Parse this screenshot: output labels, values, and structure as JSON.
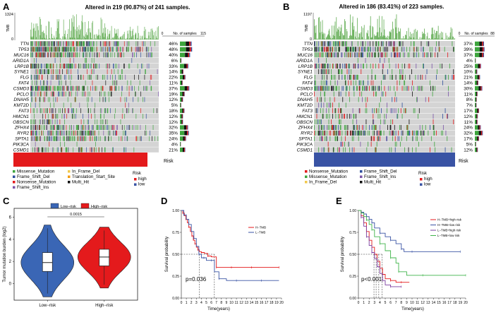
{
  "colors": {
    "missense": "#3da53d",
    "frame_shift_del": "#2f4f9e",
    "nonsense": "#e31a1c",
    "frame_shift_ins": "#7b55a8",
    "in_frame_del": "#f2c94c",
    "translation_start_site": "#f39c12",
    "multi_hit": "#111111",
    "high": "#e31a1c",
    "low": "#3953a4",
    "gray": "#d4d4d4",
    "tmb_bar": "#5aa84a"
  },
  "panels": [
    {
      "letter": "A",
      "title": "Altered in 219 (90.87%) of 241 samples.",
      "tmb_label": "TMB",
      "tmb_max": "1324",
      "tmb_min": "0",
      "axis_min": "0",
      "axis_max": "115",
      "axis_label": "No. of samples",
      "risk_label": "Risk",
      "risk_group": "high",
      "genes": [
        {
          "name": "TTN",
          "pct": "46%",
          "value": 46
        },
        {
          "name": "TP53",
          "pct": "48%",
          "value": 48
        },
        {
          "name": "MUC16",
          "pct": "40%",
          "value": 40
        },
        {
          "name": "ARID1A",
          "pct": "6%",
          "value": 6
        },
        {
          "name": "LRP1B",
          "pct": "33%",
          "value": 33
        },
        {
          "name": "SYNE1",
          "pct": "14%",
          "value": 14
        },
        {
          "name": "FLG",
          "pct": "22%",
          "value": 22
        },
        {
          "name": "FAT4",
          "pct": "11%",
          "value": 11
        },
        {
          "name": "CSMD3",
          "pct": "37%",
          "value": 37
        },
        {
          "name": "PCLO",
          "pct": "19%",
          "value": 19
        },
        {
          "name": "DNAH5",
          "pct": "12%",
          "value": 12
        },
        {
          "name": "KMT2D",
          "pct": "5%",
          "value": 5
        },
        {
          "name": "FAT3",
          "pct": "18%",
          "value": 18
        },
        {
          "name": "HMCN1",
          "pct": "12%",
          "value": 12
        },
        {
          "name": "OBSCN",
          "pct": "12%",
          "value": 12
        },
        {
          "name": "ZFHX4",
          "pct": "32%",
          "value": 32
        },
        {
          "name": "RYR2",
          "pct": "35%",
          "value": 35
        },
        {
          "name": "SPTA1",
          "pct": "24%",
          "value": 24
        },
        {
          "name": "PIK3CA",
          "pct": "4%",
          "value": 4
        },
        {
          "name": "CSMD1",
          "pct": "21%",
          "value": 21
        }
      ],
      "legend": [
        {
          "label": "Missense_Mutation",
          "color_key": "missense"
        },
        {
          "label": "In_Frame_Del",
          "color_key": "in_frame_del"
        },
        {
          "label": "Frame_Shift_Del",
          "color_key": "frame_shift_del"
        },
        {
          "label": "Translation_Start_Site",
          "color_key": "translation_start_site"
        },
        {
          "label": "Nonsense_Mutation",
          "color_key": "nonsense"
        },
        {
          "label": "Multi_Hit",
          "color_key": "multi_hit"
        },
        {
          "label": "Frame_Shift_Ins",
          "color_key": "frame_shift_ins"
        }
      ],
      "risk_legend_title": "Risk",
      "risk_legend": [
        {
          "label": "high",
          "color_key": "high"
        },
        {
          "label": "low",
          "color_key": "low"
        }
      ]
    },
    {
      "letter": "B",
      "title": "Altered in 186 (83.41%) of 223 samples.",
      "tmb_label": "TMB",
      "tmb_max": "1197",
      "tmb_min": "0",
      "axis_min": "0",
      "axis_max": "88",
      "axis_label": "No. of samples",
      "risk_label": "Risk",
      "risk_group": "low",
      "genes": [
        {
          "name": "TTN",
          "pct": "37%",
          "value": 37
        },
        {
          "name": "TP53",
          "pct": "39%",
          "value": 39
        },
        {
          "name": "MUC16",
          "pct": "37%",
          "value": 37
        },
        {
          "name": "ARID1A",
          "pct": "4%",
          "value": 4
        },
        {
          "name": "LRP1B",
          "pct": "25%",
          "value": 25
        },
        {
          "name": "SYNE1",
          "pct": "10%",
          "value": 10
        },
        {
          "name": "FLG",
          "pct": "21%",
          "value": 21
        },
        {
          "name": "FAT4",
          "pct": "14%",
          "value": 14
        },
        {
          "name": "CSMD3",
          "pct": "30%",
          "value": 30
        },
        {
          "name": "PCLO",
          "pct": "11%",
          "value": 11
        },
        {
          "name": "DNAH5",
          "pct": "8%",
          "value": 8
        },
        {
          "name": "KMT2D",
          "pct": "7%",
          "value": 7
        },
        {
          "name": "FAT3",
          "pct": "17%",
          "value": 17
        },
        {
          "name": "HMCN1",
          "pct": "12%",
          "value": 12
        },
        {
          "name": "OBSCN",
          "pct": "11%",
          "value": 11
        },
        {
          "name": "ZFHX4",
          "pct": "24%",
          "value": 24
        },
        {
          "name": "RYR2",
          "pct": "32%",
          "value": 32
        },
        {
          "name": "SPTA1",
          "pct": "17%",
          "value": 17
        },
        {
          "name": "PIK3CA",
          "pct": "5%",
          "value": 5
        },
        {
          "name": "CSMD1",
          "pct": "12%",
          "value": 12
        }
      ],
      "legend": [
        {
          "label": "Nonsense_Mutation",
          "color_key": "nonsense"
        },
        {
          "label": "Frame_Shift_Del",
          "color_key": "frame_shift_del"
        },
        {
          "label": "Missense_Mutation",
          "color_key": "missense"
        },
        {
          "label": "Frame_Shift_Ins",
          "color_key": "frame_shift_ins"
        },
        {
          "label": "In_Frame_Del",
          "color_key": "in_frame_del"
        },
        {
          "label": "Multi_Hit",
          "color_key": "multi_hit"
        }
      ],
      "risk_legend_title": "Risk",
      "risk_legend": [
        {
          "label": "high",
          "color_key": "high"
        },
        {
          "label": "low",
          "color_key": "low"
        }
      ]
    }
  ],
  "chart_data": [
    {
      "id": "C",
      "type": "violin",
      "legend": [
        {
          "label": "Low−risk",
          "color": "#3a66b5"
        },
        {
          "label": "High−risk",
          "color": "#e41a1c"
        }
      ],
      "categories": [
        "Low−risk",
        "High−risk"
      ],
      "ylabel": "Tumor mutation burden (log2)",
      "yticks": [
        "0",
        "2",
        "4",
        "6"
      ],
      "ylim": [
        -1.5,
        6.8
      ],
      "pvalue": "0.0015",
      "boxes": [
        {
          "q1": 1.1,
          "median": 1.9,
          "q3": 2.8,
          "min": -1.2,
          "max": 5.3
        },
        {
          "q1": 1.6,
          "median": 2.4,
          "q3": 3.1,
          "min": -0.4,
          "max": 5.1
        }
      ]
    },
    {
      "id": "D",
      "type": "line",
      "ylabel": "Survival probability",
      "xlabel": "Time(years)",
      "xticks": [
        "0",
        "1",
        "2",
        "3",
        "4",
        "5",
        "6",
        "7",
        "8",
        "9",
        "10",
        "11",
        "12",
        "13",
        "14",
        "15",
        "16",
        "17",
        "18",
        "19",
        "20"
      ],
      "yticks": [
        "0.00",
        "0.25",
        "0.50",
        "0.75",
        "1.00"
      ],
      "xlim": [
        0,
        20
      ],
      "ylim": [
        0,
        1
      ],
      "pvalue": "p=0.036",
      "median_lines": [
        3.6,
        6.6
      ],
      "series": [
        {
          "name": "H−TMB",
          "color": "#e41a1c",
          "x": [
            0,
            0.3,
            0.6,
            0.9,
            1.2,
            1.5,
            1.8,
            2.1,
            2.4,
            2.7,
            3.0,
            3.3,
            3.6,
            4.0,
            4.6,
            5.3,
            6.0,
            7.0,
            8.5,
            10.0,
            12.0,
            14.0,
            16.0,
            19.5
          ],
          "y": [
            1.0,
            0.97,
            0.94,
            0.9,
            0.86,
            0.81,
            0.76,
            0.71,
            0.66,
            0.62,
            0.58,
            0.55,
            0.53,
            0.52,
            0.51,
            0.48,
            0.47,
            0.35,
            0.35,
            0.35,
            0.35,
            0.35,
            0.35,
            0.35
          ]
        },
        {
          "name": "L−TMB",
          "color": "#3953a4",
          "x": [
            0,
            0.5,
            1.0,
            1.5,
            2.0,
            2.5,
            3.0,
            3.5,
            4.0,
            4.5,
            5.0,
            6.0,
            6.6,
            7.5,
            9.0,
            11.0,
            13.0,
            16.0,
            19.5
          ],
          "y": [
            1.0,
            0.95,
            0.9,
            0.84,
            0.76,
            0.68,
            0.59,
            0.5,
            0.46,
            0.46,
            0.43,
            0.43,
            0.3,
            0.22,
            0.2,
            0.2,
            0.2,
            0.2,
            0.2
          ]
        }
      ]
    },
    {
      "id": "E",
      "type": "line",
      "ylabel": "Survival probability",
      "xlabel": "Time(years)",
      "xticks": [
        "0",
        "1",
        "2",
        "3",
        "4",
        "5",
        "6",
        "7",
        "8",
        "9",
        "10",
        "11",
        "12",
        "13",
        "14",
        "15",
        "16",
        "17",
        "18",
        "19",
        "20"
      ],
      "yticks": [
        "0.00",
        "0.25",
        "0.50",
        "0.75",
        "1.00"
      ],
      "xlim": [
        0,
        20
      ],
      "ylim": [
        0,
        1
      ],
      "pvalue": "p<0.001",
      "median_lines": [
        2.9,
        3.3,
        3.8,
        4.4
      ],
      "series": [
        {
          "name": "H−TMB+high risk",
          "color": "#e41a1c",
          "x": [
            0,
            0.5,
            1.0,
            1.5,
            2.0,
            2.5,
            3.0,
            3.5,
            4.0,
            4.5,
            5.0,
            6.0,
            7.0,
            8.0,
            9.5
          ],
          "y": [
            1.0,
            0.94,
            0.86,
            0.76,
            0.66,
            0.58,
            0.5,
            0.42,
            0.34,
            0.27,
            0.22,
            0.2,
            0.18,
            0.18,
            0.18
          ]
        },
        {
          "name": "H−TMB+low risk",
          "color": "#3953a4",
          "x": [
            0,
            0.5,
            1.0,
            1.5,
            2.0,
            2.5,
            3.0,
            4.0,
            5.0,
            6.0,
            7.0,
            8.0,
            8.5,
            10.0,
            14.0,
            19.0
          ],
          "y": [
            1.0,
            0.98,
            0.96,
            0.93,
            0.9,
            0.86,
            0.8,
            0.74,
            0.7,
            0.66,
            0.62,
            0.56,
            0.53,
            0.53,
            0.53,
            0.53
          ]
        },
        {
          "name": "L−TMB+high risk",
          "color": "#7b3fa0",
          "x": [
            0,
            0.5,
            1.0,
            1.5,
            2.0,
            2.5,
            3.0,
            3.5,
            4.0,
            4.5,
            5.0,
            6.0,
            7.0,
            8.0
          ],
          "y": [
            1.0,
            0.92,
            0.82,
            0.7,
            0.6,
            0.52,
            0.45,
            0.36,
            0.28,
            0.2,
            0.15,
            0.13,
            0.13,
            0.13
          ]
        },
        {
          "name": "L−TMB+low risk",
          "color": "#3fb44a",
          "x": [
            0,
            0.5,
            1.0,
            1.5,
            2.0,
            2.5,
            3.0,
            4.0,
            5.0,
            6.0,
            7.0,
            7.5,
            9.0,
            12.0,
            16.0,
            20.0
          ],
          "y": [
            1.0,
            0.97,
            0.93,
            0.89,
            0.84,
            0.78,
            0.7,
            0.62,
            0.54,
            0.46,
            0.4,
            0.3,
            0.26,
            0.26,
            0.26,
            0.26
          ]
        }
      ]
    }
  ]
}
